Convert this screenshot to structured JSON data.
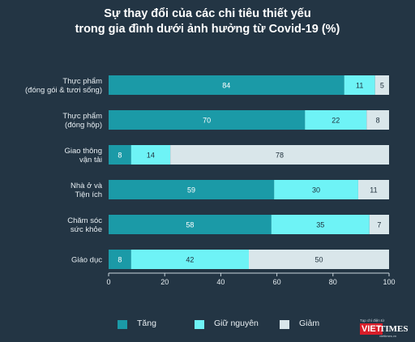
{
  "title": {
    "line1": "Sự thay đổi của các chi tiêu thiết yếu",
    "line2": "trong gia đình dưới ảnh hưởng từ Covid-19 (%)"
  },
  "chart_data": {
    "type": "bar",
    "orientation": "horizontal",
    "stacked": true,
    "categories": [
      [
        "Thực phẩm",
        "(đóng gói & tươi sống)"
      ],
      [
        "Thực phẩm",
        "(đóng hộp)"
      ],
      [
        "Giao thông",
        "vận tải"
      ],
      [
        "Nhà ở và",
        "Tiện ích"
      ],
      [
        "Chăm sóc",
        "sức khỏe"
      ],
      [
        "Giáo dục"
      ]
    ],
    "series": [
      {
        "name": "Tăng",
        "color": "#1b9aa7",
        "values": [
          84,
          70,
          8,
          59,
          58,
          8
        ]
      },
      {
        "name": "Giữ nguyên",
        "color": "#6ef3f6",
        "values": [
          11,
          22,
          14,
          30,
          35,
          42
        ]
      },
      {
        "name": "Giảm",
        "color": "#d9e6ea",
        "values": [
          5,
          8,
          78,
          11,
          7,
          50
        ]
      }
    ],
    "xlim": [
      0,
      100
    ],
    "xticks": [
      "0",
      "20",
      "40",
      "60",
      "80",
      "100"
    ],
    "xlabel": "",
    "ylabel": "",
    "grid": false,
    "legend_position": "bottom"
  },
  "legend": {
    "items": [
      "Tăng",
      "Giữ nguyên",
      "Giảm"
    ]
  },
  "logo": {
    "tagline": "Tạp chí điện tử",
    "brand_part1": "VIET",
    "brand_part2": "TIMES",
    "url": "viettimes.vn"
  }
}
